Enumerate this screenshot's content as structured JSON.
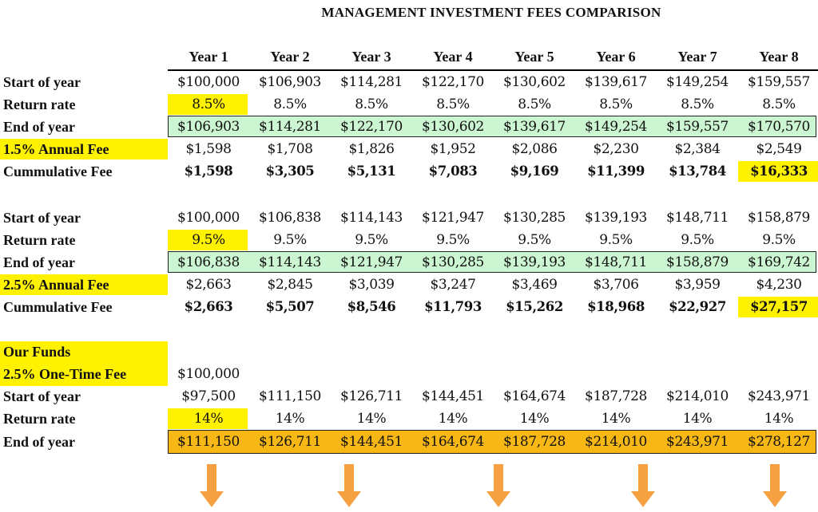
{
  "title": "MANAGEMENT INVESTMENT FEES COMPARISON",
  "years": [
    "Year 1",
    "Year 2",
    "Year 3",
    "Year 4",
    "Year 5",
    "Year 6",
    "Year 7",
    "Year 8"
  ],
  "colors": {
    "highlight": "#fff200",
    "green_band": "#ccf5d1",
    "orange_band": "#f7b714",
    "arrow": "#f5a142"
  },
  "scenario1": {
    "start_label": "Start of year",
    "start": [
      "$100,000",
      "$106,903",
      "$114,281",
      "$122,170",
      "$130,602",
      "$139,617",
      "$149,254",
      "$159,557"
    ],
    "rate_label": "Return rate",
    "rate": [
      "8.5%",
      "8.5%",
      "8.5%",
      "8.5%",
      "8.5%",
      "8.5%",
      "8.5%",
      "8.5%"
    ],
    "end_label": "End of year",
    "end": [
      "$106,903",
      "$114,281",
      "$122,170",
      "$130,602",
      "$139,617",
      "$149,254",
      "$159,557",
      "$170,570"
    ],
    "fee_label": "1.5%  Annual Fee",
    "fee": [
      "$1,598",
      "$1,708",
      "$1,826",
      "$1,952",
      "$2,086",
      "$2,230",
      "$2,384",
      "$2,549"
    ],
    "cum_label": "Cummulative Fee",
    "cum": [
      "$1,598",
      "$3,305",
      "$5,131",
      "$7,083",
      "$9,169",
      "$11,399",
      "$13,784",
      "$16,333"
    ]
  },
  "scenario2": {
    "start_label": "Start of year",
    "start": [
      "$100,000",
      "$106,838",
      "$114,143",
      "$121,947",
      "$130,285",
      "$139,193",
      "$148,711",
      "$158,879"
    ],
    "rate_label": "Return rate",
    "rate": [
      "9.5%",
      "9.5%",
      "9.5%",
      "9.5%",
      "9.5%",
      "9.5%",
      "9.5%",
      "9.5%"
    ],
    "end_label": "End of year",
    "end": [
      "$106,838",
      "$114,143",
      "$121,947",
      "$130,285",
      "$139,193",
      "$148,711",
      "$158,879",
      "$169,742"
    ],
    "fee_label": "2.5% Annual Fee",
    "fee": [
      "$2,663",
      "$2,845",
      "$3,039",
      "$3,247",
      "$3,469",
      "$3,706",
      "$3,959",
      "$4,230"
    ],
    "cum_label": "Cummulative Fee",
    "cum": [
      "$2,663",
      "$5,507",
      "$8,546",
      "$11,793",
      "$15,262",
      "$18,968",
      "$22,927",
      "$27,157"
    ]
  },
  "scenario3": {
    "heading": "Our Funds",
    "fee_label": "2.5% One-Time Fee",
    "fee_value": "$100,000",
    "start_label": "Start of year",
    "start": [
      "$97,500",
      "$111,150",
      "$126,711",
      "$144,451",
      "$164,674",
      "$187,728",
      "$214,010",
      "$243,971"
    ],
    "rate_label": "Return rate",
    "rate": [
      "14%",
      "14%",
      "14%",
      "14%",
      "14%",
      "14%",
      "14%",
      "14%"
    ],
    "end_label": "End of year",
    "end": [
      "$111,150",
      "$126,711",
      "$144,451",
      "$164,674",
      "$187,728",
      "$214,010",
      "$243,971",
      "$278,127"
    ]
  }
}
